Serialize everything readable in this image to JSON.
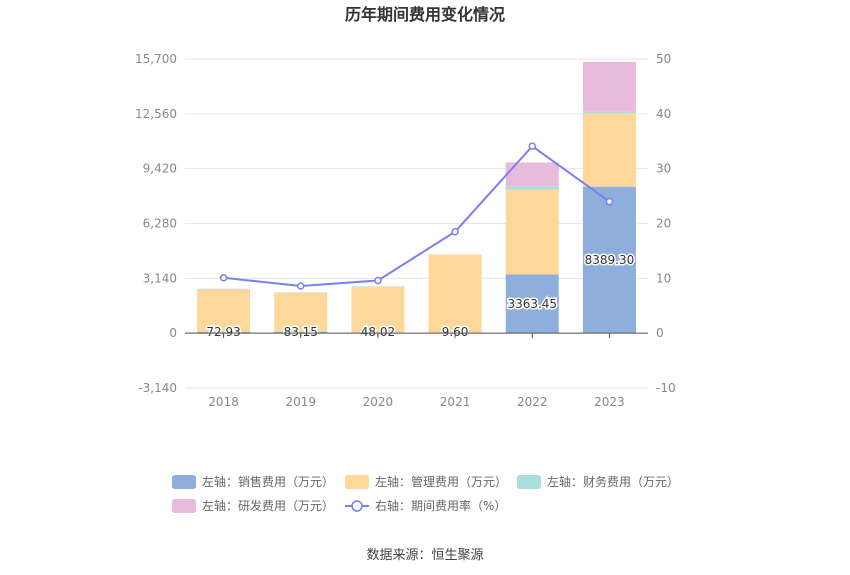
{
  "chart_data": {
    "type": "bar",
    "title": "历年期间费用变化情况",
    "categories": [
      "2018",
      "2019",
      "2020",
      "2021",
      "2022",
      "2023"
    ],
    "stacked": true,
    "left_axis": {
      "ticks": [
        "15,700",
        "12,560",
        "9,420",
        "6,280",
        "3,140",
        "0",
        "-3,140"
      ],
      "ylim": [
        -3140,
        15700
      ]
    },
    "right_axis": {
      "ticks": [
        "50",
        "40",
        "30",
        "20",
        "10",
        "0",
        "-10"
      ],
      "ylim": [
        -10,
        50
      ]
    },
    "series": [
      {
        "name": "左轴：销售费用（万元）",
        "axis": "left",
        "type": "bar",
        "color": "#8eaedc",
        "values": [
          72.93,
          83.15,
          48.02,
          9.6,
          3363.45,
          8389.3
        ],
        "labels": [
          "72.93",
          "83.15",
          "48.02",
          "9.60",
          "3363.45",
          "8389.30"
        ]
      },
      {
        "name": "左轴：管理费用（万元）",
        "axis": "left",
        "type": "bar",
        "color": "#fed89a",
        "values": [
          2450,
          2230,
          2620,
          4500,
          4860,
          4200
        ]
      },
      {
        "name": "左轴：财务费用（万元）",
        "axis": "left",
        "type": "bar",
        "color": "#a8dedd",
        "values": [
          20,
          15,
          10,
          0,
          170,
          90
        ]
      },
      {
        "name": "左轴：研发费用（万元）",
        "axis": "left",
        "type": "bar",
        "color": "#e8bbdc",
        "values": [
          0,
          0,
          0,
          0,
          1380,
          2850
        ]
      },
      {
        "name": "右轴：期间费用率（%）",
        "axis": "right",
        "type": "line",
        "color": "#7b7ff0",
        "values": [
          10.1,
          8.6,
          9.6,
          18.5,
          34.1,
          24.0
        ]
      }
    ],
    "legend_position": "bottom",
    "grid": true
  },
  "footer": {
    "source": "数据来源：恒生聚源"
  }
}
